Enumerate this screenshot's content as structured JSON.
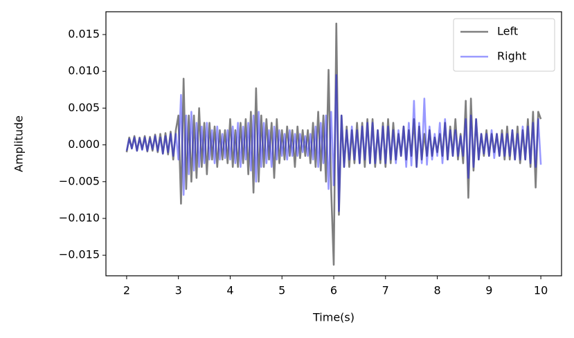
{
  "chart_data": {
    "type": "line",
    "xlabel": "Time(s)",
    "ylabel": "Amplitude",
    "legend": "upper right",
    "xlim": [
      1.6,
      10.4
    ],
    "ylim": [
      -0.0178,
      0.0181
    ],
    "xticks": [
      2,
      3,
      4,
      5,
      6,
      7,
      8,
      9,
      10
    ],
    "yticks": [
      {
        "value": -0.015,
        "label": "−0.015"
      },
      {
        "value": -0.01,
        "label": "−0.010"
      },
      {
        "value": -0.005,
        "label": "−0.005"
      },
      {
        "value": 0,
        "label": "0.000"
      },
      {
        "value": 0.005,
        "label": "0.005"
      },
      {
        "value": 0.01,
        "label": "0.010"
      },
      {
        "value": 0.015,
        "label": "0.015"
      }
    ],
    "x": [
      2,
      2.05,
      2.1,
      2.15,
      2.2,
      2.25,
      2.3,
      2.35,
      2.4,
      2.45,
      2.5,
      2.55,
      2.6,
      2.65,
      2.7,
      2.75,
      2.8,
      2.85,
      2.9,
      2.95,
      3,
      3.05,
      3.1,
      3.15,
      3.2,
      3.25,
      3.3,
      3.35,
      3.4,
      3.45,
      3.5,
      3.55,
      3.6,
      3.65,
      3.7,
      3.75,
      3.8,
      3.85,
      3.9,
      3.95,
      4,
      4.05,
      4.1,
      4.15,
      4.2,
      4.25,
      4.3,
      4.35,
      4.4,
      4.45,
      4.5,
      4.55,
      4.6,
      4.65,
      4.7,
      4.75,
      4.8,
      4.85,
      4.9,
      4.95,
      5,
      5.05,
      5.1,
      5.15,
      5.2,
      5.25,
      5.3,
      5.35,
      5.4,
      5.45,
      5.5,
      5.55,
      5.6,
      5.65,
      5.7,
      5.75,
      5.8,
      5.85,
      5.9,
      5.95,
      6,
      6.05,
      6.1,
      6.15,
      6.2,
      6.25,
      6.3,
      6.35,
      6.4,
      6.45,
      6.5,
      6.55,
      6.6,
      6.65,
      6.7,
      6.75,
      6.8,
      6.85,
      6.9,
      6.95,
      7,
      7.05,
      7.1,
      7.15,
      7.2,
      7.25,
      7.3,
      7.35,
      7.4,
      7.45,
      7.5,
      7.55,
      7.6,
      7.65,
      7.7,
      7.75,
      7.8,
      7.85,
      7.9,
      7.95,
      8,
      8.05,
      8.1,
      8.15,
      8.2,
      8.25,
      8.3,
      8.35,
      8.4,
      8.45,
      8.5,
      8.55,
      8.6,
      8.65,
      8.7,
      8.75,
      8.8,
      8.85,
      8.9,
      8.95,
      9,
      9.05,
      9.1,
      9.15,
      9.2,
      9.25,
      9.3,
      9.35,
      9.4,
      9.45,
      9.5,
      9.55,
      9.6,
      9.65,
      9.7,
      9.75,
      9.8,
      9.85,
      9.9,
      9.95,
      10
    ],
    "series": [
      {
        "name": "Left",
        "color": "#00000080",
        "values": [
          -0.001,
          0.001,
          -0.0005,
          0.0012,
          -0.0008,
          0.001,
          -0.0006,
          0.0012,
          -0.0009,
          0.0011,
          -0.0008,
          0.0014,
          -0.001,
          0.0015,
          -0.0012,
          0.0016,
          -0.0013,
          0.0018,
          -0.002,
          0.002,
          0.004,
          -0.008,
          0.009,
          -0.006,
          0.004,
          -0.005,
          0.004,
          -0.0045,
          0.005,
          -0.003,
          0.003,
          -0.004,
          0.003,
          -0.002,
          0.0025,
          -0.003,
          0.002,
          -0.002,
          0.002,
          -0.0025,
          0.0035,
          -0.003,
          0.002,
          -0.003,
          0.003,
          -0.0025,
          0.0035,
          -0.004,
          0.0045,
          -0.0065,
          0.0077,
          -0.005,
          0.004,
          -0.003,
          0.0035,
          -0.002,
          0.003,
          -0.0045,
          0.0035,
          -0.0025,
          0.002,
          -0.002,
          0.0025,
          -0.0015,
          0.002,
          -0.003,
          0.0025,
          -0.0018,
          0.002,
          -0.0015,
          0.002,
          -0.0025,
          0.003,
          -0.003,
          0.0045,
          -0.0035,
          0.004,
          -0.005,
          0.0102,
          -0.006,
          -0.0163,
          0.0165,
          -0.0095,
          0.004,
          -0.003,
          0.0025,
          -0.003,
          0.002,
          -0.0025,
          0.003,
          -0.0025,
          0.003,
          -0.003,
          0.0035,
          -0.0025,
          0.0035,
          -0.003,
          0.002,
          -0.0025,
          0.003,
          -0.003,
          0.0035,
          -0.0025,
          0.003,
          -0.002,
          0.0015,
          -0.0015,
          0.0025,
          -0.002,
          0.002,
          -0.0015,
          0.0035,
          -0.003,
          0.0025,
          -0.002,
          0.0015,
          -0.0015,
          0.002,
          -0.0015,
          0.001,
          -0.001,
          0.0015,
          -0.0015,
          0.003,
          -0.002,
          0.0025,
          -0.0015,
          0.0035,
          -0.002,
          0.0015,
          -0.0025,
          0.006,
          -0.0072,
          0.0063,
          -0.0035,
          0.0035,
          -0.002,
          0.0015,
          -0.0015,
          0.002,
          -0.0015,
          0.0015,
          -0.001,
          0.0015,
          -0.0015,
          0.002,
          -0.002,
          0.0025,
          -0.002,
          0.002,
          -0.002,
          0.0025,
          -0.0025,
          0.002,
          -0.002,
          0.0035,
          -0.003,
          0.0045,
          -0.0058,
          0.0045,
          0.0035
        ]
      },
      {
        "name": "Right",
        "color": "#0000ff66",
        "values": [
          -0.0008,
          0.0008,
          -0.0005,
          0.001,
          -0.0008,
          0.0009,
          -0.0007,
          0.001,
          -0.0008,
          0.0009,
          -0.0006,
          0.0012,
          -0.0008,
          0.001,
          -0.0012,
          0.0012,
          -0.001,
          0.0015,
          -0.0015,
          0.0015,
          -0.002,
          0.0068,
          -0.0068,
          0.004,
          -0.004,
          0.0045,
          -0.0035,
          0.003,
          -0.003,
          0.0025,
          -0.0025,
          0.003,
          -0.002,
          0.002,
          -0.0025,
          0.0025,
          -0.002,
          0.0015,
          -0.0018,
          0.002,
          -0.002,
          0.0025,
          -0.0025,
          0.003,
          -0.003,
          0.0025,
          -0.002,
          0.003,
          -0.0035,
          0.004,
          -0.005,
          0.0045,
          -0.003,
          0.003,
          -0.0025,
          0.002,
          -0.003,
          0.0025,
          -0.002,
          0.002,
          -0.0015,
          0.0015,
          -0.002,
          0.002,
          -0.0015,
          0.0015,
          -0.0015,
          0.0015,
          -0.001,
          0.0012,
          -0.0015,
          0.0015,
          -0.002,
          0.0025,
          -0.003,
          0.003,
          -0.0025,
          0.004,
          -0.006,
          0.0045,
          -0.0055,
          0.0095,
          -0.009,
          0.004,
          -0.003,
          0.002,
          -0.002,
          0.0025,
          -0.002,
          0.002,
          -0.0025,
          0.0025,
          -0.002,
          0.003,
          -0.0025,
          0.003,
          -0.0025,
          0.002,
          -0.002,
          0.0025,
          -0.0025,
          0.0025,
          -0.002,
          0.002,
          -0.0025,
          0.002,
          -0.0015,
          0.0025,
          -0.003,
          0.003,
          -0.0028,
          0.006,
          -0.003,
          0.003,
          -0.0025,
          0.0063,
          -0.0027,
          0.0025,
          -0.002,
          0.0015,
          -0.0015,
          0.003,
          -0.0025,
          0.0035,
          -0.002,
          0.002,
          -0.0015,
          0.002,
          -0.0015,
          0.0012,
          -0.0015,
          0.0035,
          -0.0045,
          0.004,
          -0.003,
          0.0035,
          -0.002,
          0.0015,
          -0.0012,
          0.0015,
          -0.0015,
          0.002,
          -0.0018,
          0.0015,
          -0.0015,
          0.0015,
          -0.0015,
          0.0015,
          -0.0015,
          0.002,
          -0.002,
          0.0015,
          -0.002,
          0.0025,
          -0.002,
          0.0025,
          -0.0025,
          0.003,
          -0.003,
          0.0035,
          -0.0027
        ]
      }
    ]
  }
}
